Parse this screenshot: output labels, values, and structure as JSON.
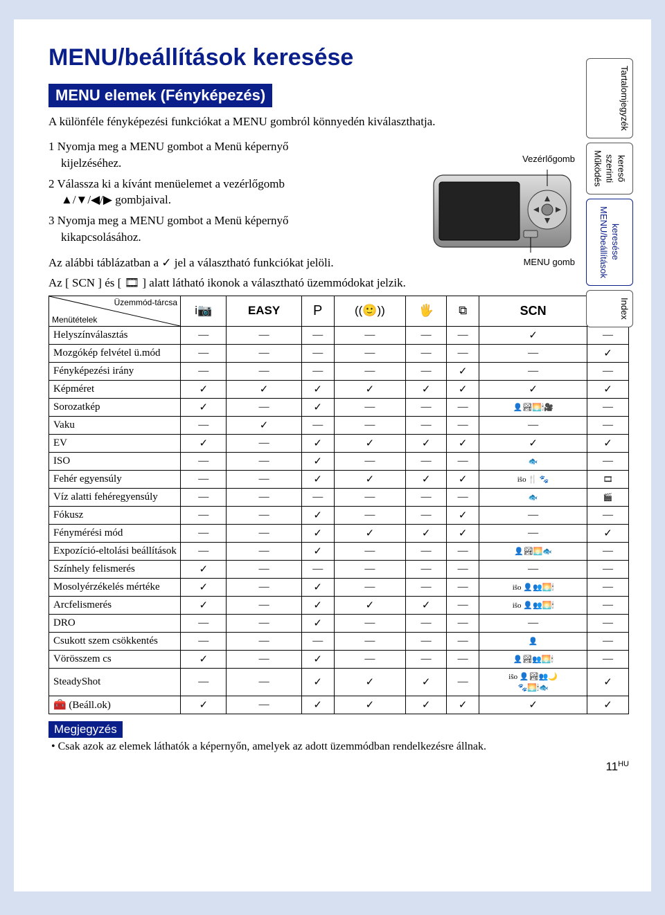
{
  "title": "MENU/beállítások keresése",
  "section": "MENU elemek (Fényképezés)",
  "intro": "A különféle fényképezési funkciókat a MENU gombról könnyedén kiválaszthatja.",
  "steps": {
    "s1a": "1 Nyomja meg a MENU gombot a Menü képernyő",
    "s1b": "kijelzéséhez.",
    "s2a": "2 Válassza ki a kívánt menüelemet a vezérlőgomb",
    "s2b": "▲/▼/◀/▶ gombjaival.",
    "s3a": "3 Nyomja meg a MENU gombot a Menü képernyő",
    "s3b": "kikapcsolásához."
  },
  "camera": {
    "top_label": "Vezérlőgomb",
    "bottom_label": "MENU gomb"
  },
  "para2a": "Az alábbi táblázatban a ✓ jel a választható funkciókat jelöli.",
  "para2b": "Az [ SCN ] és [ 🎞 ] alatt látható ikonok a választható üzemmódokat jelzik.",
  "diag": {
    "top": "Üzemmód-tárcsa",
    "bottom": "Menütételek"
  },
  "columns": [
    "i📷",
    "EASY",
    "P",
    "((🙂))",
    "🖐",
    "⧉",
    "SCN",
    "🎞"
  ],
  "rows": [
    {
      "label": "Helyszínválasztás",
      "cells": [
        "—",
        "—",
        "—",
        "—",
        "—",
        "—",
        "✓",
        "—"
      ]
    },
    {
      "label": "Mozgókép felvétel ü.mód",
      "cells": [
        "—",
        "—",
        "—",
        "—",
        "—",
        "—",
        "—",
        "✓"
      ]
    },
    {
      "label": "Fényképezési irány",
      "cells": [
        "—",
        "—",
        "—",
        "—",
        "—",
        "✓",
        "—",
        "—"
      ]
    },
    {
      "label": "Képméret",
      "cells": [
        "✓",
        "✓",
        "✓",
        "✓",
        "✓",
        "✓",
        "✓",
        "✓"
      ]
    },
    {
      "label": "Sorozatkép",
      "cells": [
        "✓",
        "—",
        "✓",
        "—",
        "—",
        "—",
        "👤🏞🌅🕯🎥",
        "—"
      ]
    },
    {
      "label": "Vaku",
      "cells": [
        "—",
        "✓",
        "—",
        "—",
        "—",
        "—",
        "—",
        "—"
      ]
    },
    {
      "label": "EV",
      "cells": [
        "✓",
        "—",
        "✓",
        "✓",
        "✓",
        "✓",
        "✓",
        "✓"
      ]
    },
    {
      "label": "ISO",
      "cells": [
        "—",
        "—",
        "✓",
        "—",
        "—",
        "—",
        "🐟",
        "—"
      ]
    },
    {
      "label": "Fehér egyensúly",
      "cells": [
        "—",
        "—",
        "✓",
        "✓",
        "✓",
        "✓",
        "iŝo 🍴 🐾",
        "🎞"
      ]
    },
    {
      "label": "Víz alatti fehéregyensúly",
      "cells": [
        "—",
        "—",
        "—",
        "—",
        "—",
        "—",
        "🐟",
        "🎬"
      ]
    },
    {
      "label": "Fókusz",
      "cells": [
        "—",
        "—",
        "✓",
        "—",
        "—",
        "✓",
        "—",
        "—"
      ]
    },
    {
      "label": "Fénymérési mód",
      "cells": [
        "—",
        "—",
        "✓",
        "✓",
        "✓",
        "✓",
        "—",
        "✓"
      ]
    },
    {
      "label": "Expozíció-eltolási beállítások",
      "cells": [
        "—",
        "—",
        "✓",
        "—",
        "—",
        "—",
        "👤🏞🌅🐟",
        "—"
      ]
    },
    {
      "label": "Színhely felismerés",
      "cells": [
        "✓",
        "—",
        "—",
        "—",
        "—",
        "—",
        "—",
        "—"
      ]
    },
    {
      "label": "Mosolyérzékelés mértéke",
      "cells": [
        "✓",
        "—",
        "✓",
        "—",
        "—",
        "—",
        "iŝo 👤👥🌅🕯",
        "—"
      ]
    },
    {
      "label": "Arcfelismerés",
      "cells": [
        "✓",
        "—",
        "✓",
        "✓",
        "✓",
        "—",
        "iŝo 👤👥🌅🕯",
        "—"
      ]
    },
    {
      "label": "DRO",
      "cells": [
        "—",
        "—",
        "✓",
        "—",
        "—",
        "—",
        "—",
        "—"
      ]
    },
    {
      "label": "Csukott szem csökkentés",
      "cells": [
        "—",
        "—",
        "—",
        "—",
        "—",
        "—",
        "👤",
        "—"
      ]
    },
    {
      "label": "Vörösszem cs",
      "cells": [
        "✓",
        "—",
        "✓",
        "—",
        "—",
        "—",
        "👤🏞👥🌅🕯",
        "—"
      ]
    },
    {
      "label": "SteadyShot",
      "cells": [
        "—",
        "—",
        "✓",
        "✓",
        "✓",
        "—",
        "iŝo 👤🏞👥🌙\n🐾🌅🕯🐟",
        "✓"
      ]
    },
    {
      "label": "🧰 (Beáll.ok)",
      "cells": [
        "✓",
        "—",
        "✓",
        "✓",
        "✓",
        "✓",
        "✓",
        "✓"
      ]
    }
  ],
  "note_label": "Megjegyzés",
  "note_text": "• Csak azok az elemek láthatók a képernyőn, amelyek az adott üzemmódban rendelkezésre állnak.",
  "page_num": "11",
  "page_lang": "HU",
  "tabs": [
    "Tartalomjegyzék",
    "Működés szerinti kereső",
    "MENU/beállítások keresése",
    "Index"
  ],
  "active_tab": 2
}
